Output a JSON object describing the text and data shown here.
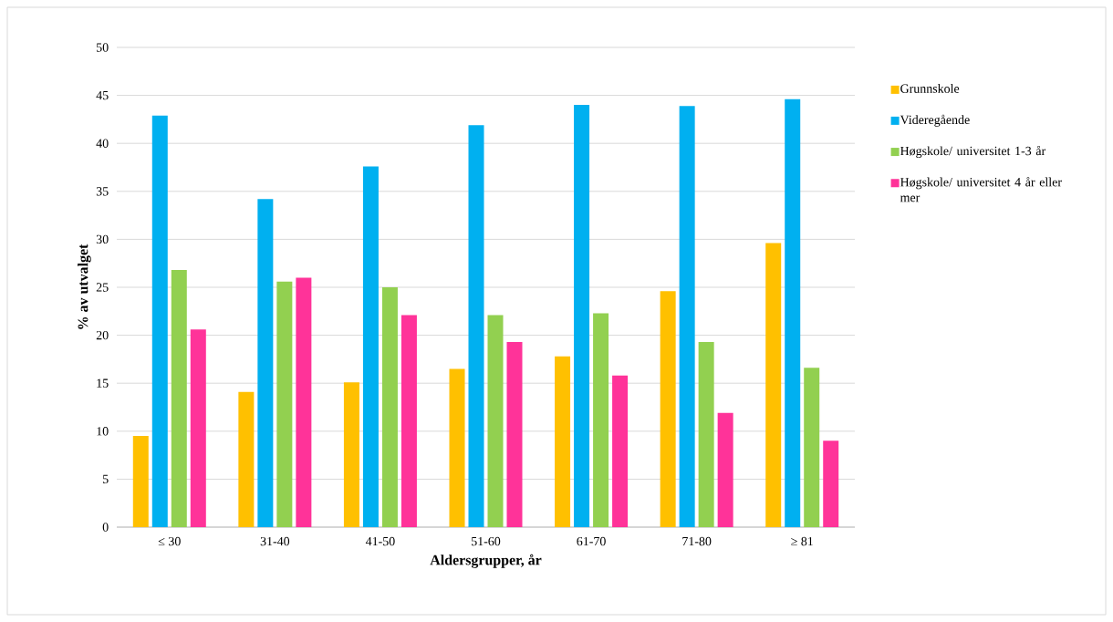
{
  "chart_data": {
    "type": "bar",
    "xlabel": "Aldersgrupper, år",
    "ylabel": "% av utvalget",
    "categories": [
      "≤ 30",
      "31-40",
      "41-50",
      "51-60",
      "61-70",
      "71-80",
      "≥ 81"
    ],
    "series": [
      {
        "name": "Grunnskole",
        "color": "#ffc000",
        "values": [
          9.5,
          14.1,
          15.1,
          16.5,
          17.8,
          24.6,
          29.6
        ]
      },
      {
        "name": "Videregående",
        "color": "#00b0f0",
        "values": [
          42.9,
          34.2,
          37.6,
          41.9,
          44.0,
          43.9,
          44.6
        ]
      },
      {
        "name": "Høgskole/ universitet 1-3 år",
        "color": "#92d050",
        "values": [
          26.8,
          25.6,
          25.0,
          22.1,
          22.3,
          19.3,
          16.6
        ]
      },
      {
        "name": "Høgskole/ universitet 4 år eller mer",
        "color": "#ff3399",
        "values": [
          20.6,
          26.0,
          22.1,
          19.3,
          15.8,
          11.9,
          9.0
        ]
      }
    ],
    "ylim": [
      0,
      50
    ],
    "yticks": [
      0,
      5,
      10,
      15,
      20,
      25,
      30,
      35,
      40,
      45,
      50
    ],
    "grid": "y",
    "legend": "right"
  }
}
